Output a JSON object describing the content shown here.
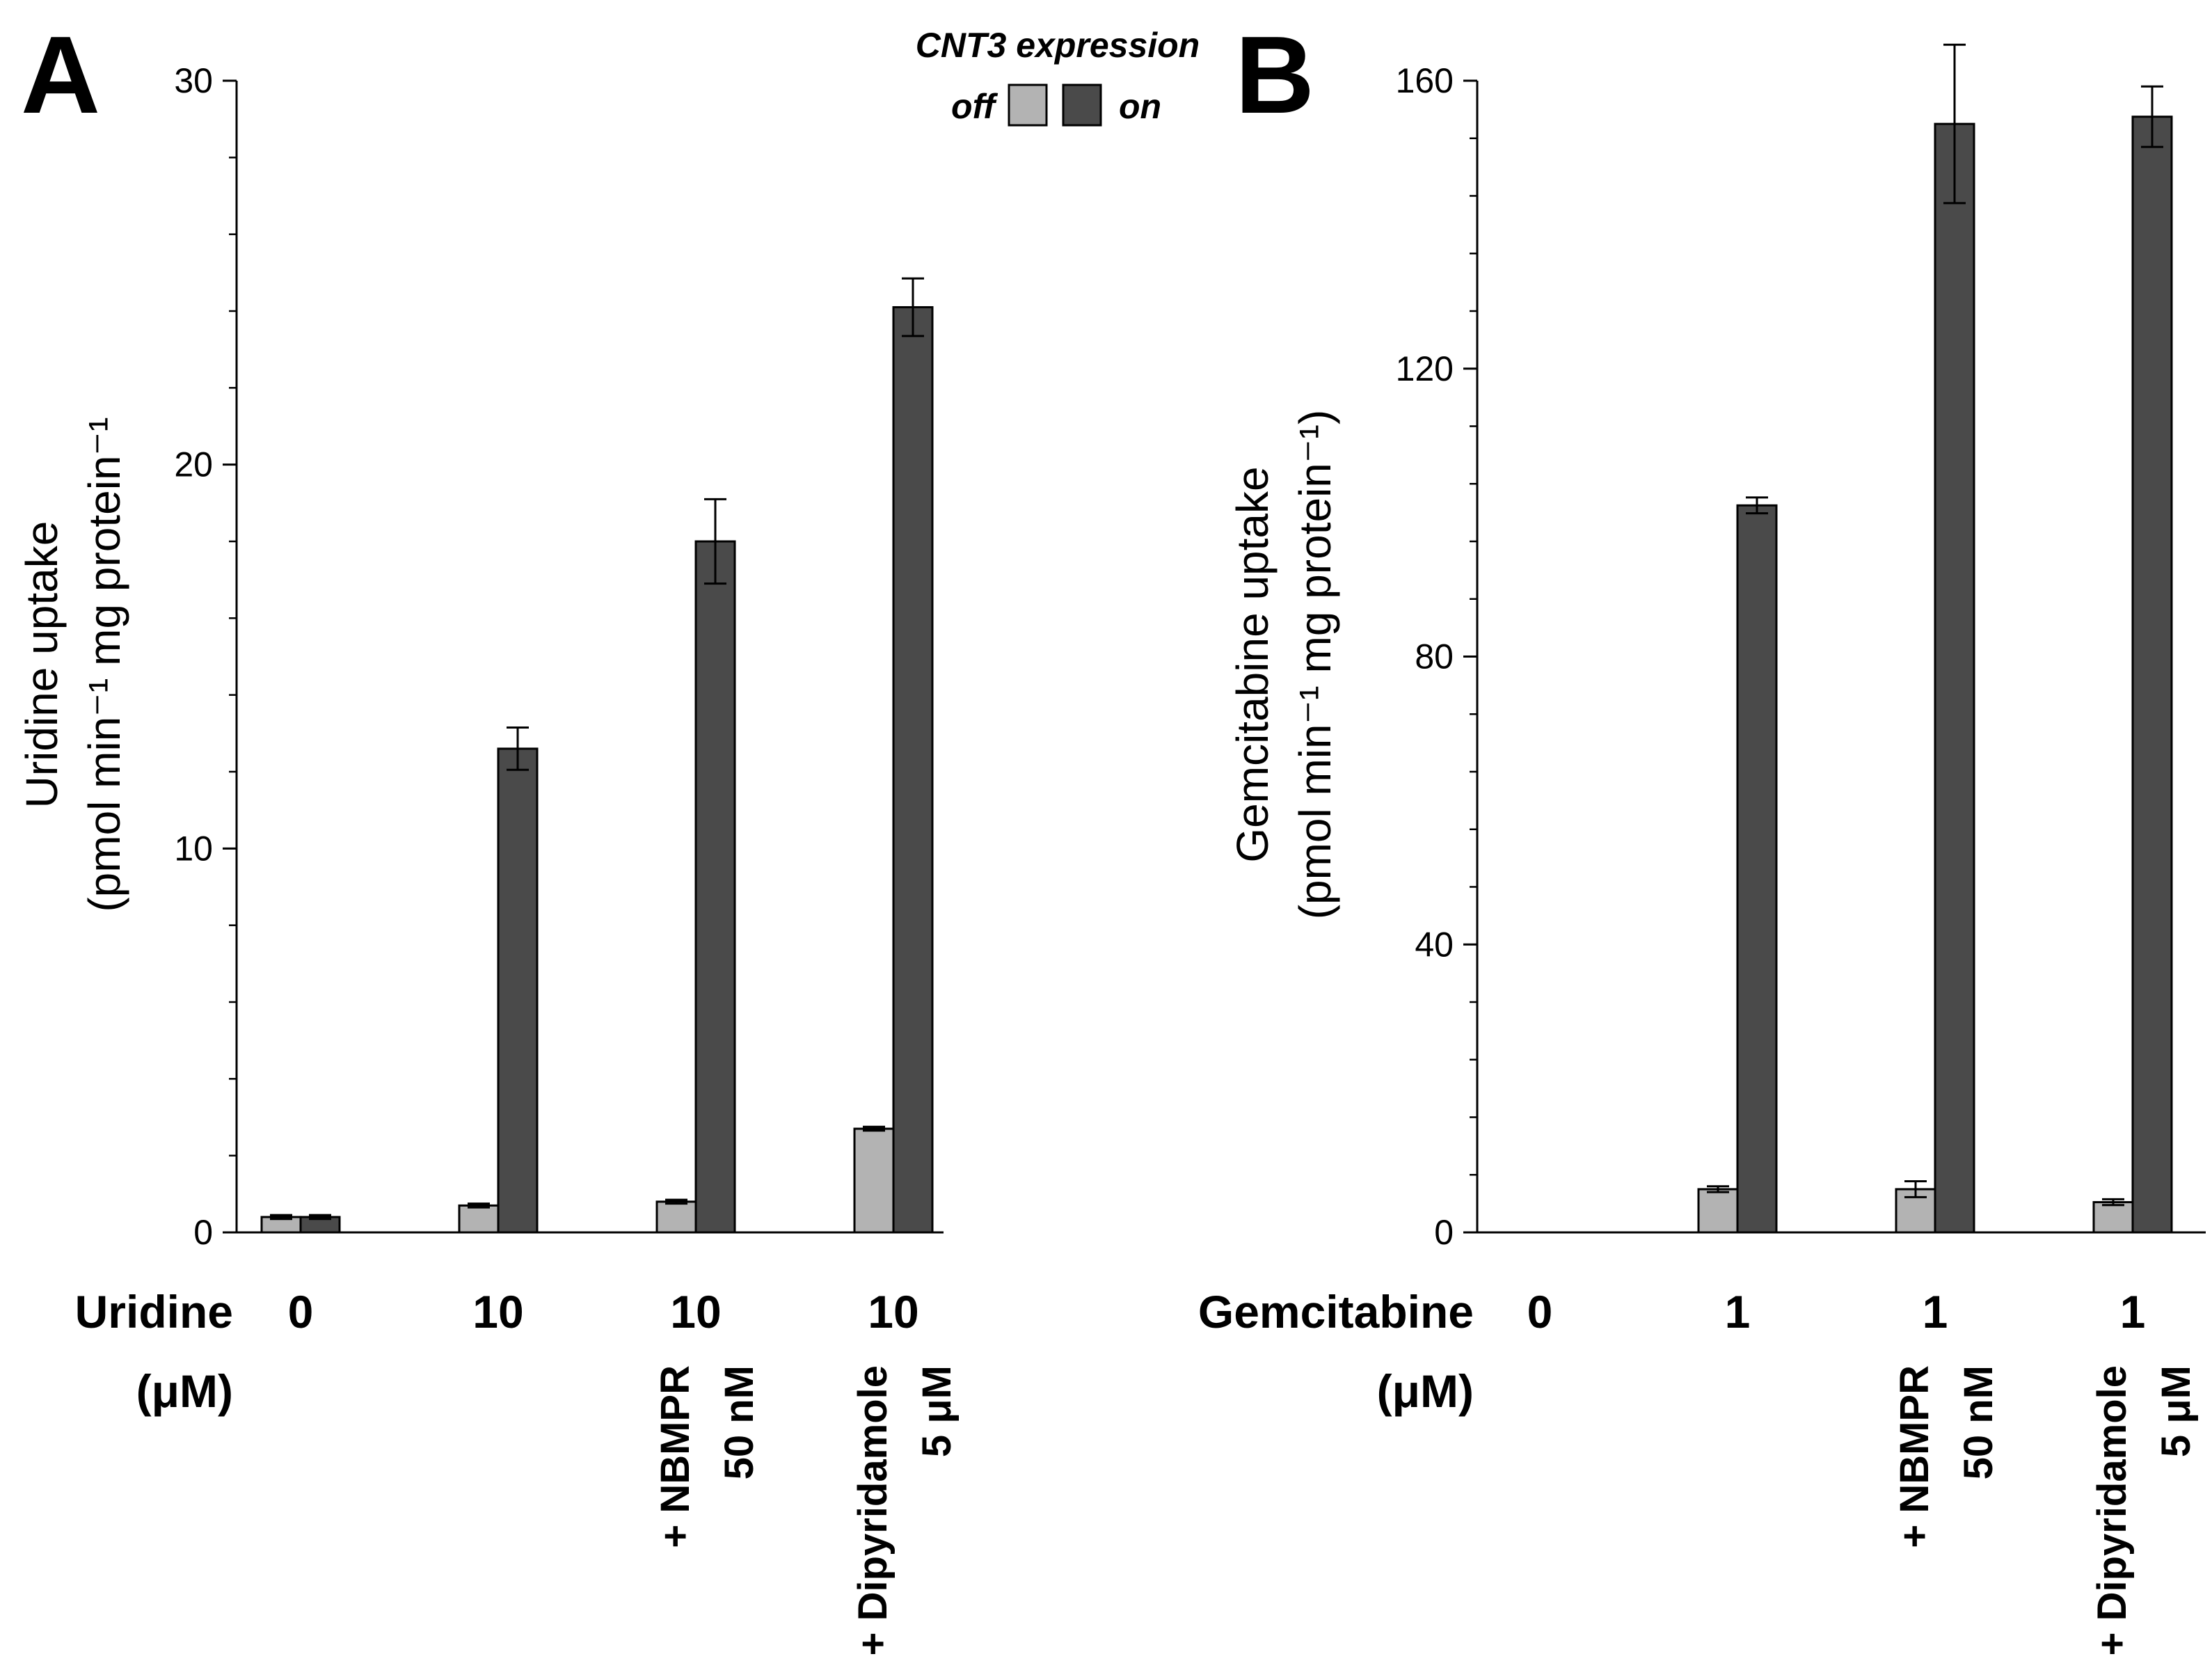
{
  "colors": {
    "off": "#b3b3b3",
    "on": "#4a4a4a",
    "axis": "#000000"
  },
  "legend": {
    "title": "CNT3 expression",
    "off_label": "off",
    "on_label": "on"
  },
  "chart_data": [
    {
      "type": "bar",
      "panel": "A",
      "ylabel_line1": "Uridine uptake",
      "ylabel_line2": "(pmol min⁻¹ mg protein⁻¹",
      "ylim": [
        0,
        30
      ],
      "yticks": [
        0,
        10,
        20,
        30
      ],
      "xlabel_line1": "Uridine",
      "xlabel_line2": "(μM)",
      "categories": [
        "0",
        "10",
        "10",
        "10"
      ],
      "treatments": [
        {
          "line1": "",
          "line2": ""
        },
        {
          "line1": "",
          "line2": ""
        },
        {
          "line1": "+ NBMPR",
          "line2": "50 nM"
        },
        {
          "line1": "+ Dipyridamole",
          "line2": "5 μM"
        }
      ],
      "series": [
        {
          "name": "off",
          "values": [
            0.4,
            0.7,
            0.8,
            2.7
          ],
          "errors": [
            0.05,
            0.05,
            0.05,
            0.05
          ]
        },
        {
          "name": "on",
          "values": [
            0.4,
            12.6,
            18.0,
            24.1
          ],
          "errors": [
            0.05,
            0.55,
            1.1,
            0.75
          ]
        }
      ]
    },
    {
      "type": "bar",
      "panel": "B",
      "ylabel_line1": "Gemcitabine uptake",
      "ylabel_line2": "(pmol min⁻¹ mg protein⁻¹)",
      "ylim": [
        0,
        160
      ],
      "yticks": [
        0,
        40,
        80,
        120,
        160
      ],
      "xlabel_line1": "Gemcitabine",
      "xlabel_line2": "(μM)",
      "categories": [
        "0",
        "1",
        "1",
        "1"
      ],
      "treatments": [
        {
          "line1": "",
          "line2": ""
        },
        {
          "line1": "",
          "line2": ""
        },
        {
          "line1": "+ NBMPR",
          "line2": "50 nM"
        },
        {
          "line1": "+ Dipyridamole",
          "line2": "5 μM"
        }
      ],
      "series": [
        {
          "name": "off",
          "values": [
            0,
            6.0,
            6.0,
            4.2
          ],
          "errors": [
            0,
            0.4,
            1.1,
            0.4
          ]
        },
        {
          "name": "on",
          "values": [
            0,
            101.0,
            154.0,
            155.0
          ],
          "errors": [
            0,
            1.1,
            11.0,
            4.2
          ]
        }
      ]
    }
  ]
}
